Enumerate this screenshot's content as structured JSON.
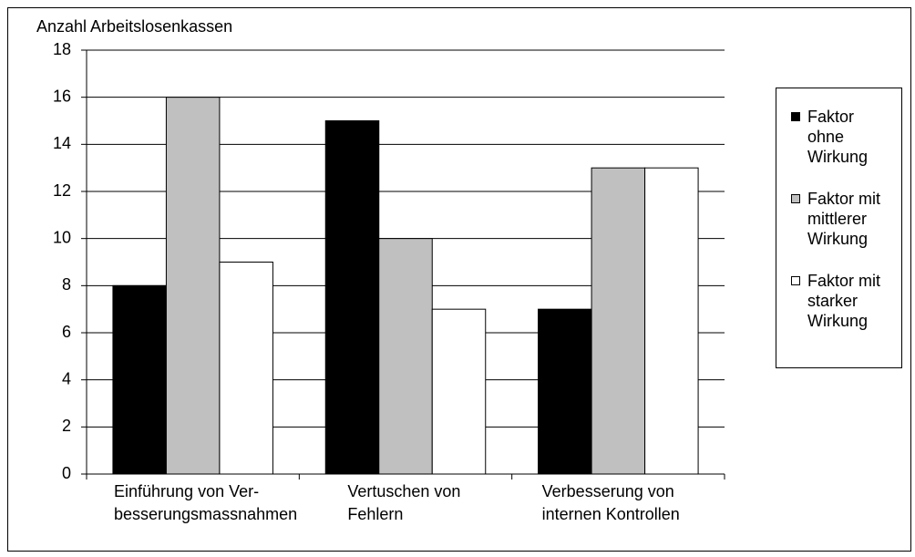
{
  "chart_data": {
    "type": "bar",
    "y_axis_label": "Anzahl Arbeitslosenkassen",
    "categories": [
      [
        "Einführung von Ver-",
        "besserungsmassnahmen"
      ],
      [
        "Vertuschen von",
        "Fehlern"
      ],
      [
        "Verbesserung von",
        "internen Kontrollen"
      ]
    ],
    "series": [
      {
        "name": "Faktor ohne Wirkung",
        "color": "#000000",
        "values": [
          8,
          15,
          7
        ]
      },
      {
        "name": "Faktor mit mittlerer Wirkung",
        "color": "#c0c0c0",
        "values": [
          16,
          10,
          13
        ]
      },
      {
        "name": "Faktor mit starker Wirkung",
        "color": "#ffffff",
        "values": [
          9,
          7,
          13
        ]
      }
    ],
    "ylim": [
      0,
      18
    ],
    "yticks": [
      0,
      2,
      4,
      6,
      8,
      10,
      12,
      14,
      16,
      18
    ],
    "grid": true,
    "legend": "right"
  }
}
